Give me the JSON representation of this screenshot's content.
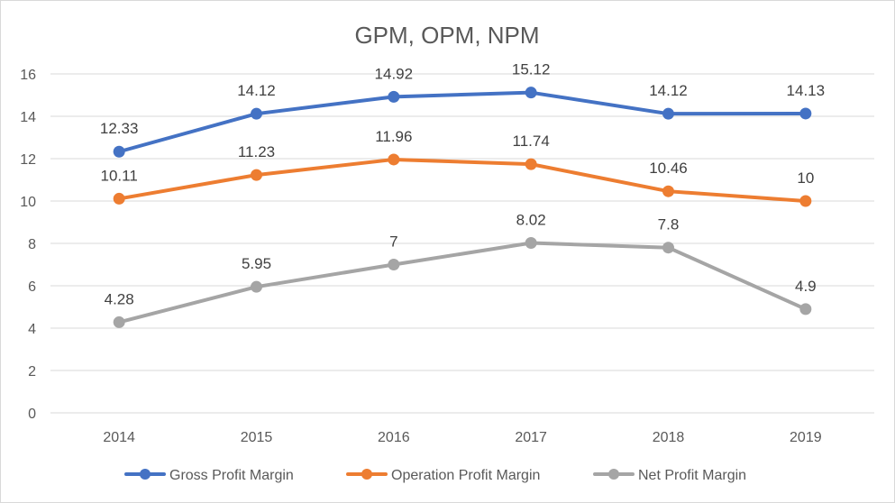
{
  "chart_data": {
    "type": "line",
    "title": "GPM, OPM, NPM",
    "categories": [
      "2014",
      "2015",
      "2016",
      "2017",
      "2018",
      "2019"
    ],
    "ylim": [
      0,
      16
    ],
    "yticks": [
      0,
      2,
      4,
      6,
      8,
      10,
      12,
      14,
      16
    ],
    "grid": true,
    "legend_position": "bottom",
    "series": [
      {
        "name": "Gross Profit Margin",
        "color": "#4472c4",
        "values": [
          12.33,
          14.12,
          14.92,
          15.12,
          14.12,
          14.13
        ],
        "labels": [
          "12.33",
          "14.12",
          "14.92",
          "15.12",
          "14.12",
          "14.13"
        ]
      },
      {
        "name": "Operation Profit Margin",
        "color": "#ed7d31",
        "values": [
          10.11,
          11.23,
          11.96,
          11.74,
          10.46,
          10
        ],
        "labels": [
          "10.11",
          "11.23",
          "11.96",
          "11.74",
          "10.46",
          "10"
        ]
      },
      {
        "name": "Net Profit Margin",
        "color": "#a5a5a5",
        "values": [
          4.28,
          5.95,
          7,
          8.02,
          7.8,
          4.9
        ],
        "labels": [
          "4.28",
          "5.95",
          "7",
          "8.02",
          "7.8",
          "4.9"
        ]
      }
    ]
  }
}
